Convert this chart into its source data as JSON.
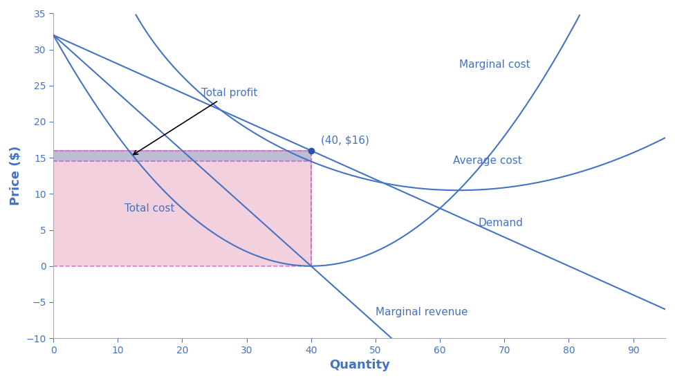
{
  "title": "",
  "xlabel": "Quantity",
  "ylabel": "Price ($)",
  "xlim": [
    0,
    95
  ],
  "ylim": [
    -10,
    35
  ],
  "xticks": [
    0,
    10,
    20,
    30,
    40,
    50,
    60,
    70,
    80,
    90
  ],
  "yticks": [
    -10,
    -5,
    0,
    5,
    10,
    15,
    20,
    25,
    30,
    35
  ],
  "curve_color": "#4472C4",
  "bg_color": "#ffffff",
  "profit_rect_color": "#F0C8D8",
  "profit_top_color": "#9999BB",
  "point_x": 40,
  "point_y": 16,
  "avg_cost_at_40": 14.5,
  "price_at_40": 16,
  "annotation_point": "(40, $16)",
  "label_total_profit": "Total profit",
  "label_total_cost": "Total cost",
  "label_marginal_cost": "Marginal cost",
  "label_average_cost": "Average cost",
  "label_demand": "Demand",
  "label_marginal_revenue": "Marginal revenue",
  "dashed_color": "#CC66CC",
  "figsize": [
    9.76,
    5.51
  ],
  "dpi": 100
}
